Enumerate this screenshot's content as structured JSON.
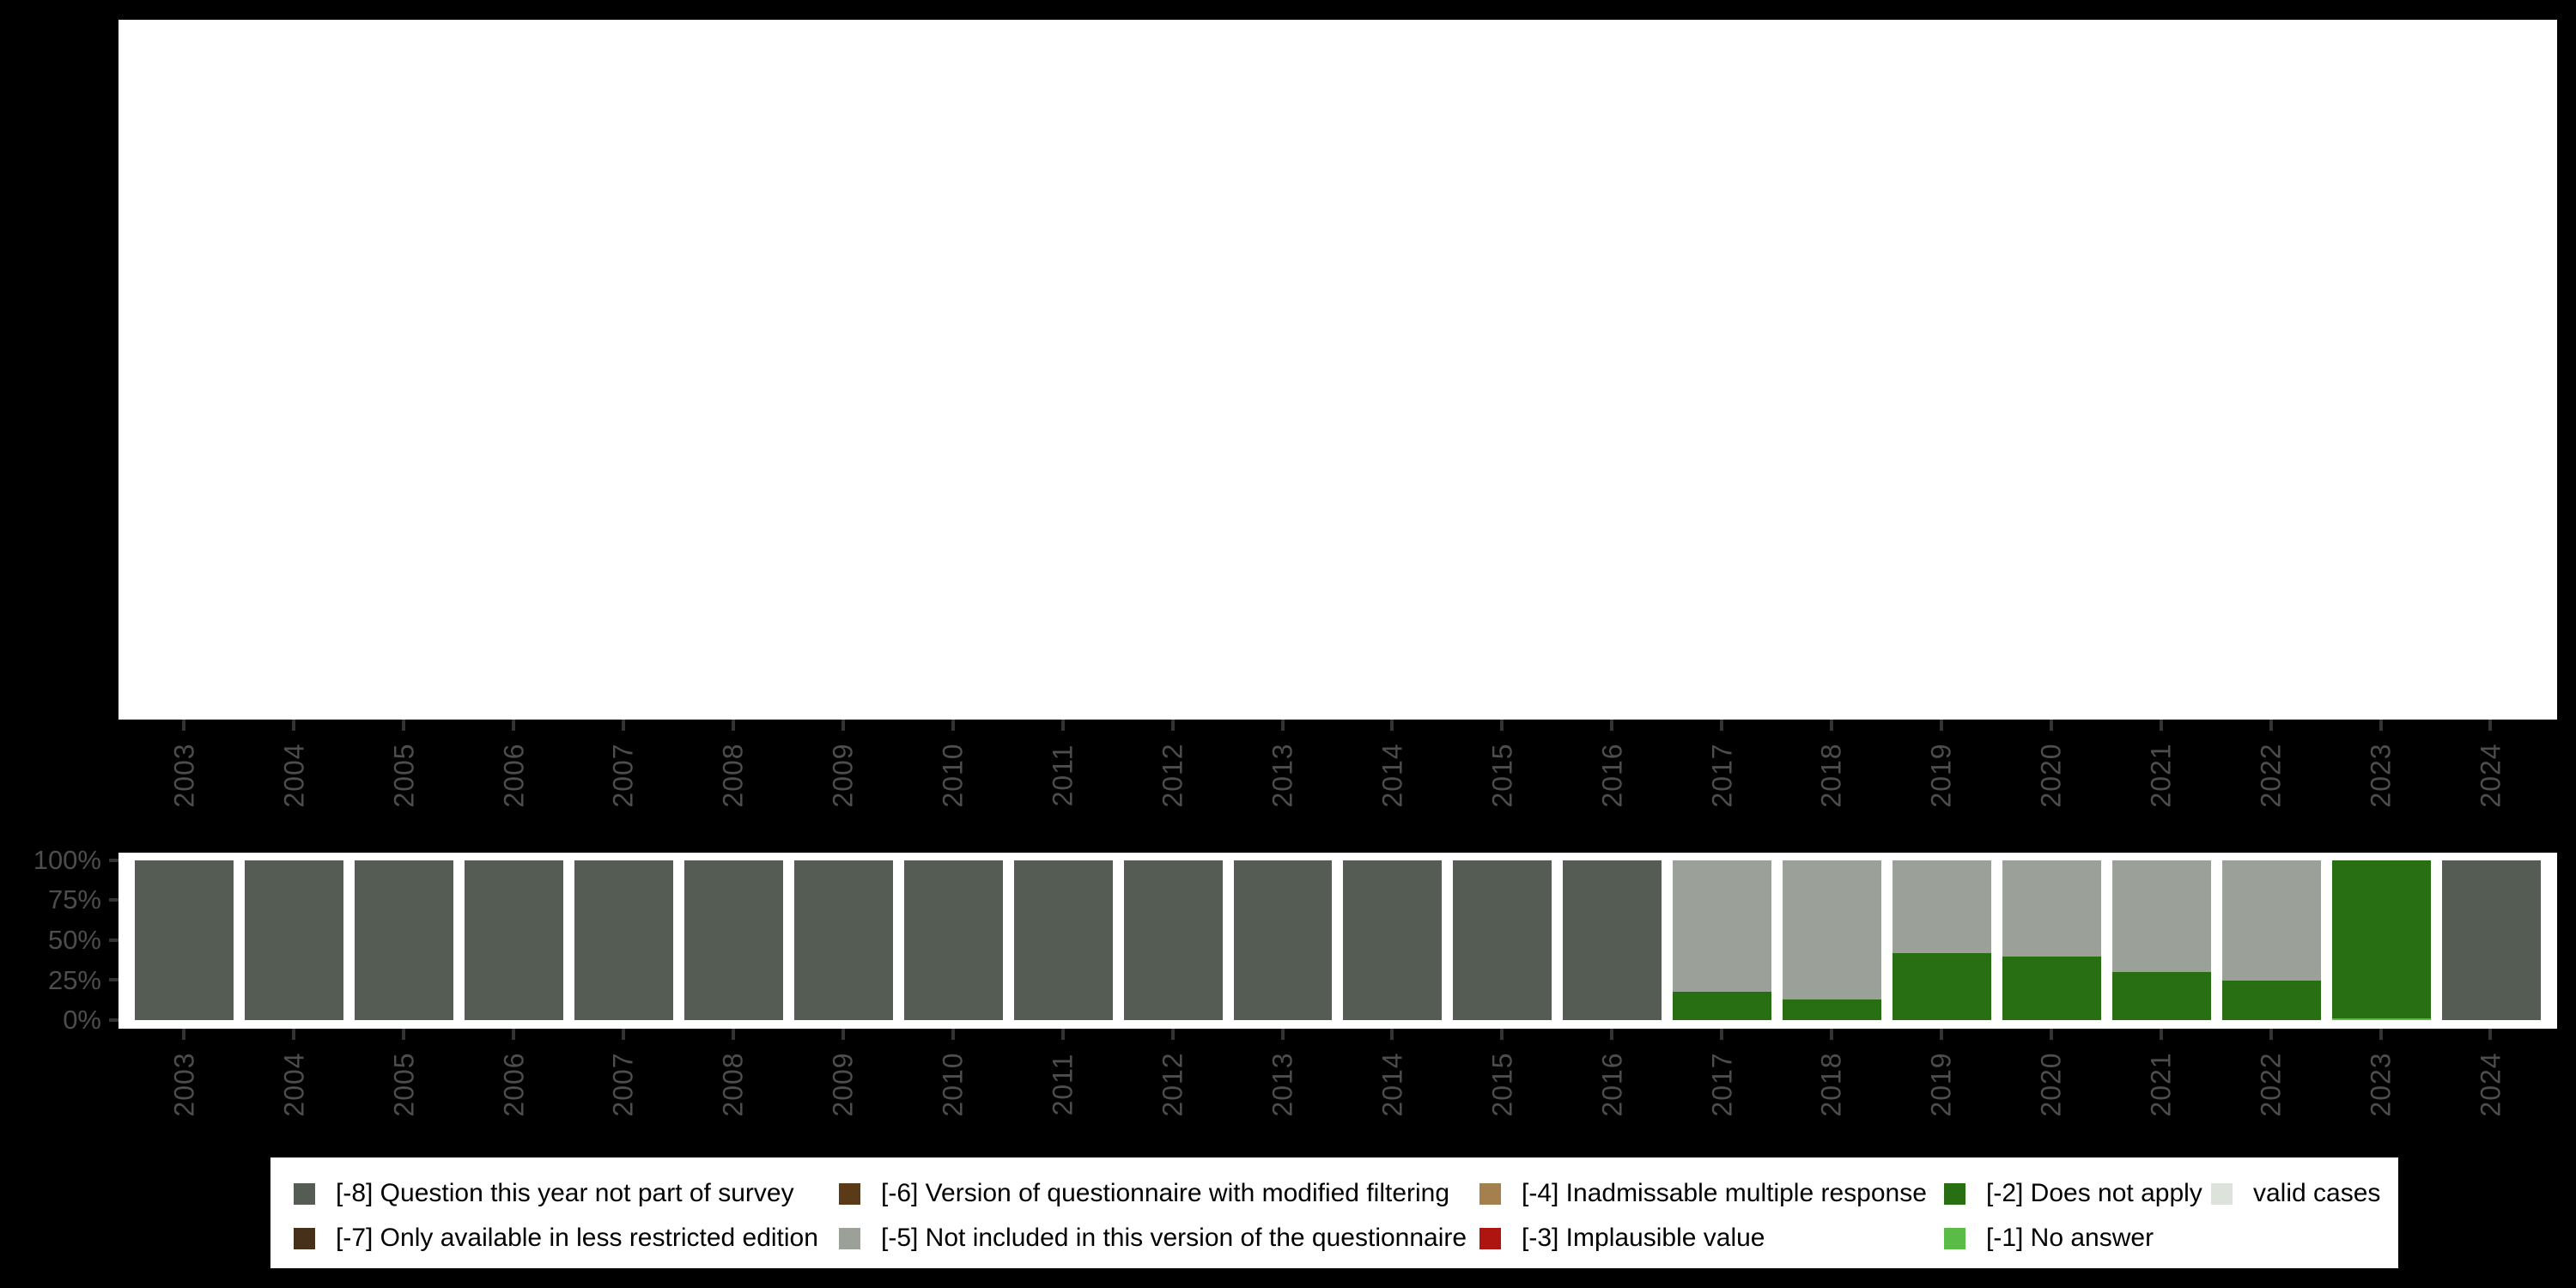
{
  "figure": {
    "background": "#000000",
    "panel_background": "#ffffff",
    "tick_color": "#333333",
    "axis_label_color": "#4d4d4d"
  },
  "colors": {
    "-8": "#555C54",
    "-7": "#473019",
    "-6": "#5A3A17",
    "-5": "#9BA199",
    "-4": "#A5804F",
    "-3": "#AE1510",
    "-2": "#276F12",
    "-1": "#5BBB47",
    "valid": "#DDE2DA"
  },
  "y_axis": {
    "tick_labels": [
      "100%",
      "75%",
      "50%",
      "25%",
      "0%"
    ]
  },
  "legend": {
    "items": [
      {
        "key": "-8",
        "label": "[-8] Question this year not part of survey"
      },
      {
        "key": "-7",
        "label": "[-7] Only available in less restricted edition"
      },
      {
        "key": "-6",
        "label": "[-6] Version of questionnaire with modified filtering"
      },
      {
        "key": "-5",
        "label": "[-5] Not included in this version of the questionnaire"
      },
      {
        "key": "-4",
        "label": "[-4] Inadmissable multiple response"
      },
      {
        "key": "-3",
        "label": "[-3] Implausible value"
      },
      {
        "key": "-2",
        "label": "[-2] Does not apply"
      },
      {
        "key": "-1",
        "label": "[-1] No answer"
      },
      {
        "key": "valid",
        "label": "valid cases"
      }
    ]
  },
  "chart_data": {
    "type": "bar",
    "stacked": true,
    "unit": "percent",
    "title": "",
    "xlabel": "",
    "ylabel": "",
    "ylim": [
      0,
      100
    ],
    "yticks": [
      "0%",
      "25%",
      "50%",
      "75%",
      "100%"
    ],
    "grid": false,
    "legend_position": "bottom",
    "categories": [
      "2003",
      "2004",
      "2005",
      "2006",
      "2007",
      "2008",
      "2009",
      "2010",
      "2011",
      "2012",
      "2013",
      "2014",
      "2015",
      "2016",
      "2017",
      "2018",
      "2019",
      "2020",
      "2021",
      "2022",
      "2023",
      "2024"
    ],
    "years": [
      {
        "year": "2003",
        "segments": [
          {
            "key": "-8",
            "value": 100
          }
        ]
      },
      {
        "year": "2004",
        "segments": [
          {
            "key": "-8",
            "value": 100
          }
        ]
      },
      {
        "year": "2005",
        "segments": [
          {
            "key": "-8",
            "value": 100
          }
        ]
      },
      {
        "year": "2006",
        "segments": [
          {
            "key": "-8",
            "value": 100
          }
        ]
      },
      {
        "year": "2007",
        "segments": [
          {
            "key": "-8",
            "value": 100
          }
        ]
      },
      {
        "year": "2008",
        "segments": [
          {
            "key": "-8",
            "value": 100
          }
        ]
      },
      {
        "year": "2009",
        "segments": [
          {
            "key": "-8",
            "value": 100
          }
        ]
      },
      {
        "year": "2010",
        "segments": [
          {
            "key": "-8",
            "value": 100
          }
        ]
      },
      {
        "year": "2011",
        "segments": [
          {
            "key": "-8",
            "value": 100
          }
        ]
      },
      {
        "year": "2012",
        "segments": [
          {
            "key": "-8",
            "value": 100
          }
        ]
      },
      {
        "year": "2013",
        "segments": [
          {
            "key": "-8",
            "value": 100
          }
        ]
      },
      {
        "year": "2014",
        "segments": [
          {
            "key": "-8",
            "value": 100
          }
        ]
      },
      {
        "year": "2015",
        "segments": [
          {
            "key": "-8",
            "value": 100
          }
        ]
      },
      {
        "year": "2016",
        "segments": [
          {
            "key": "-8",
            "value": 100
          }
        ]
      },
      {
        "year": "2017",
        "segments": [
          {
            "key": "-2",
            "value": 18
          },
          {
            "key": "-5",
            "value": 82
          }
        ]
      },
      {
        "year": "2018",
        "segments": [
          {
            "key": "-2",
            "value": 13
          },
          {
            "key": "-5",
            "value": 87
          }
        ]
      },
      {
        "year": "2019",
        "segments": [
          {
            "key": "-2",
            "value": 42
          },
          {
            "key": "-5",
            "value": 58
          }
        ]
      },
      {
        "year": "2020",
        "segments": [
          {
            "key": "-2",
            "value": 40
          },
          {
            "key": "-5",
            "value": 60
          }
        ]
      },
      {
        "year": "2021",
        "segments": [
          {
            "key": "-2",
            "value": 30
          },
          {
            "key": "-5",
            "value": 70
          }
        ]
      },
      {
        "year": "2022",
        "segments": [
          {
            "key": "-2",
            "value": 25
          },
          {
            "key": "-5",
            "value": 75
          }
        ]
      },
      {
        "year": "2023",
        "segments": [
          {
            "key": "-1",
            "value": 1
          },
          {
            "key": "-2",
            "value": 99
          }
        ]
      },
      {
        "year": "2024",
        "segments": [
          {
            "key": "-8",
            "value": 100
          }
        ]
      }
    ]
  }
}
